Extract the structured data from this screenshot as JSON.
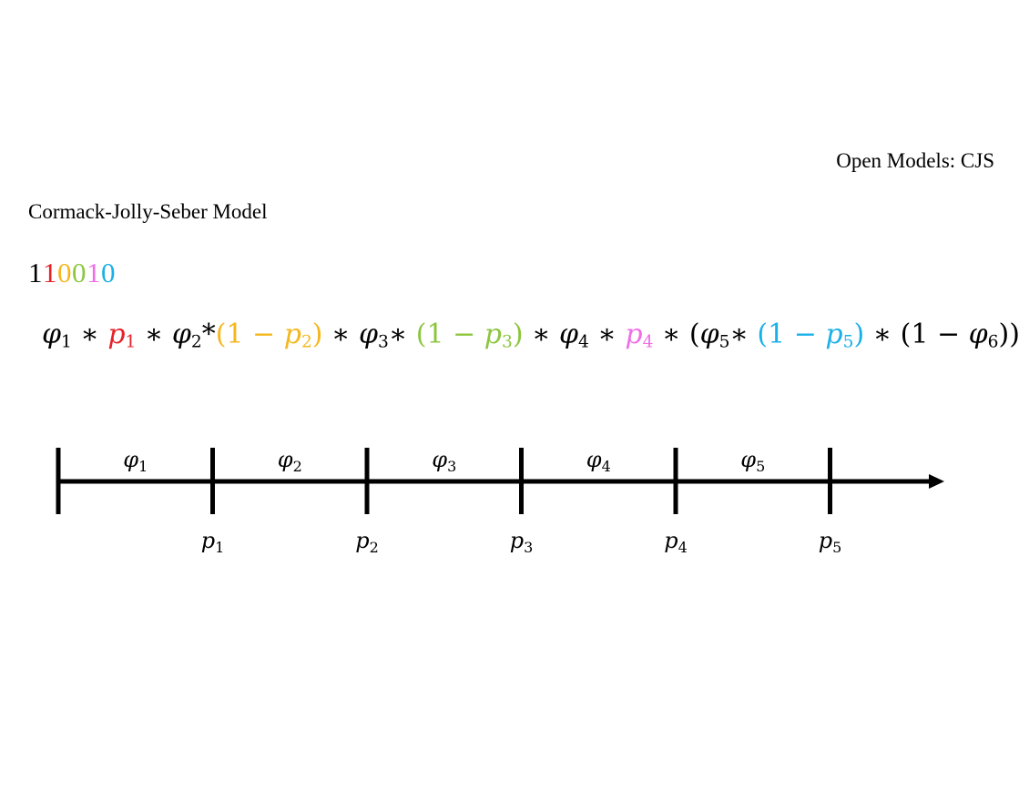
{
  "slide": {
    "tag": "Open Models: CJS",
    "title": "Cormack-Jolly-Seber Model"
  },
  "colors": {
    "black": "#000000",
    "red": "#e5222a",
    "orange": "#f5b71c",
    "green": "#8cc63f",
    "pink": "#f06de8",
    "cyan": "#1ab0e8"
  },
  "capture_history": {
    "digits": [
      {
        "d": "1",
        "color": "#000000"
      },
      {
        "d": "1",
        "color": "#e5222a"
      },
      {
        "d": "0",
        "color": "#f5b71c"
      },
      {
        "d": "0",
        "color": "#8cc63f"
      },
      {
        "d": "1",
        "color": "#f06de8"
      },
      {
        "d": "0",
        "color": "#1ab0e8"
      }
    ]
  },
  "formula": {
    "terms": [
      {
        "t": "φ",
        "s": "1",
        "c": "#000000"
      },
      {
        "t": " ∗ ",
        "c": "#000000"
      },
      {
        "t": "p",
        "s": "1",
        "c": "#e5222a"
      },
      {
        "t": " ∗ ",
        "c": "#000000"
      },
      {
        "t": "φ",
        "s": "2",
        "c": "#000000"
      },
      {
        "t": "*",
        "c": "#000000"
      },
      {
        "t": "(1 − ",
        "c": "#f5b71c"
      },
      {
        "t": "p",
        "s": "2",
        "c": "#f5b71c"
      },
      {
        "t": ")",
        "c": "#f5b71c"
      },
      {
        "t": " ∗ ",
        "c": "#000000"
      },
      {
        "t": "φ",
        "s": "3",
        "c": "#000000"
      },
      {
        "t": "∗ ",
        "c": "#000000"
      },
      {
        "t": "(1 − ",
        "c": "#8cc63f"
      },
      {
        "t": "p",
        "s": "3",
        "c": "#8cc63f"
      },
      {
        "t": ")",
        "c": "#8cc63f"
      },
      {
        "t": " ∗ ",
        "c": "#000000"
      },
      {
        "t": "φ",
        "s": "4",
        "c": "#000000"
      },
      {
        "t": " ∗ ",
        "c": "#000000"
      },
      {
        "t": "p",
        "s": "4",
        "c": "#f06de8"
      },
      {
        "t": " ∗ (",
        "c": "#000000"
      },
      {
        "t": "φ",
        "s": "5",
        "c": "#000000"
      },
      {
        "t": "∗ ",
        "c": "#000000"
      },
      {
        "t": "(1 − ",
        "c": "#1ab0e8"
      },
      {
        "t": "p",
        "s": "5",
        "c": "#1ab0e8"
      },
      {
        "t": ")",
        "c": "#1ab0e8"
      },
      {
        "t": " ∗ (1 − ",
        "c": "#000000"
      },
      {
        "t": "φ",
        "s": "6",
        "c": "#000000"
      },
      {
        "t": "))",
        "c": "#000000"
      }
    ]
  },
  "timeline": {
    "intervals": [
      {
        "sym": "φ",
        "sub": "1"
      },
      {
        "sym": "φ",
        "sub": "2"
      },
      {
        "sym": "φ",
        "sub": "3"
      },
      {
        "sym": "φ",
        "sub": "4"
      },
      {
        "sym": "φ",
        "sub": "5"
      }
    ],
    "occasions": [
      {
        "sym": "p",
        "sub": "1"
      },
      {
        "sym": "p",
        "sub": "2"
      },
      {
        "sym": "p",
        "sub": "3"
      },
      {
        "sym": "p",
        "sub": "4"
      },
      {
        "sym": "p",
        "sub": "5"
      }
    ]
  }
}
